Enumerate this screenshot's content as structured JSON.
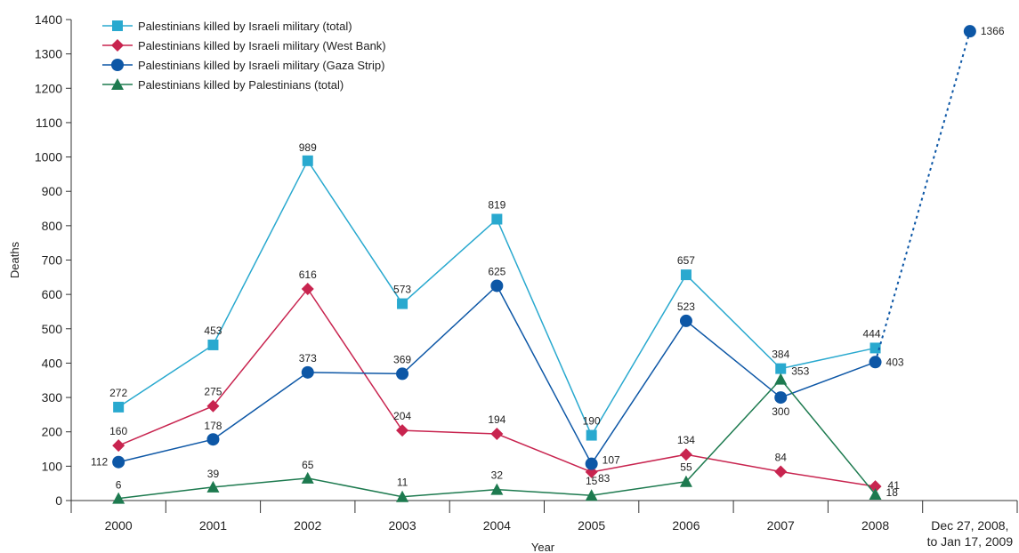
{
  "chart_data": {
    "type": "line",
    "title": "",
    "xlabel": "Year",
    "ylabel": "Deaths",
    "ylim": [
      0,
      1400
    ],
    "yticks": [
      "0",
      "100",
      "200",
      "300",
      "400",
      "500",
      "600",
      "700",
      "800",
      "900",
      "1000",
      "1100",
      "1200",
      "1300",
      "1400"
    ],
    "categories": [
      "2000",
      "2001",
      "2002",
      "2003",
      "2004",
      "2005",
      "2006",
      "2007",
      "2008",
      "Dec 27, 2008,\nto Jan 17, 2009"
    ],
    "legend_position": "top-left",
    "grid": false,
    "series": [
      {
        "name": "Palestinians killed by Israeli military (total)",
        "color": "#29a9cf",
        "marker": "square",
        "values": [
          272,
          453,
          989,
          573,
          819,
          190,
          657,
          384,
          444,
          null
        ],
        "labels": [
          "272",
          "453",
          "989",
          "573",
          "819",
          "190",
          "657",
          "384",
          "444",
          null
        ]
      },
      {
        "name": "Palestinians killed by Israeli military (West Bank)",
        "color": "#c8244f",
        "marker": "diamond",
        "values": [
          160,
          275,
          616,
          204,
          194,
          83,
          134,
          84,
          41,
          null
        ],
        "labels": [
          "160",
          "275",
          "616",
          "204",
          "194",
          "83",
          "134",
          "84",
          "41",
          null
        ]
      },
      {
        "name": "Palestinians killed by Israeli military (Gaza Strip)",
        "color": "#0d57a6",
        "marker": "circle",
        "values": [
          112,
          178,
          373,
          369,
          625,
          107,
          523,
          300,
          403,
          1366
        ],
        "labels": [
          "112",
          "178",
          "373",
          "369",
          "625",
          "107",
          "523",
          "300",
          "403",
          "1366"
        ]
      },
      {
        "name": "Palestinians killed by Palestinians (total)",
        "color": "#1d7a4f",
        "marker": "triangle",
        "values": [
          6,
          39,
          65,
          11,
          32,
          15,
          55,
          353,
          18,
          null
        ],
        "labels": [
          "6",
          "39",
          "65",
          "11",
          "32",
          "15",
          "55",
          "353",
          "18",
          null
        ]
      }
    ],
    "annotations": [
      "Dotted line connects 2008 Gaza Strip value to Dec 27, 2008, to Jan 17, 2009 value"
    ]
  }
}
